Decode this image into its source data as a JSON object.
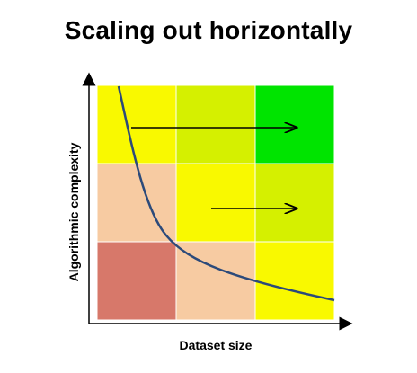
{
  "title": "Scaling out horizontally",
  "x_axis_label": "Dataset size",
  "y_axis_label": "Algorithmic complexity",
  "grid": {
    "rows": 3,
    "cols": 3,
    "cells": [
      [
        "#f9f900",
        "#d5f000",
        "#00e400"
      ],
      [
        "#f7cba2",
        "#f9f900",
        "#d5f000"
      ],
      [
        "#d7786a",
        "#f7cba2",
        "#f9f900"
      ]
    ]
  },
  "colors": {
    "curve": "#2c4a7a",
    "arrow": "#000000",
    "axis": "#000000"
  }
}
